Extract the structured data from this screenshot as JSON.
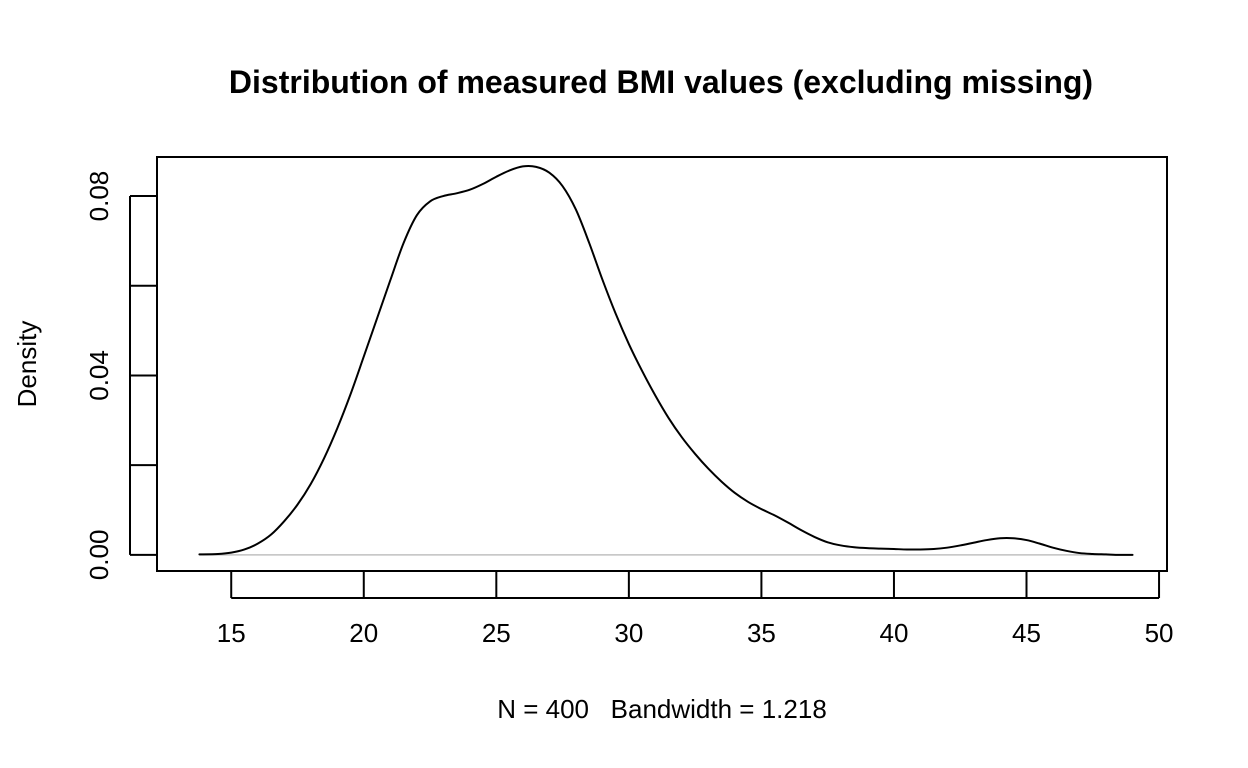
{
  "chart_data": {
    "type": "line",
    "title": "Distribution of measured BMI values (excluding missing)",
    "xlabel": "N = 400   Bandwidth = 1.218",
    "ylabel": "Density",
    "xlim": [
      12.2,
      50.3
    ],
    "ylim": [
      -0.0036,
      0.0887
    ],
    "x_ticks": [
      15,
      20,
      25,
      30,
      35,
      40,
      45,
      50
    ],
    "x_tick_labels": [
      "15",
      "20",
      "25",
      "30",
      "35",
      "40",
      "45",
      "50"
    ],
    "y_ticks": [
      0.0,
      0.02,
      0.04,
      0.06,
      0.08
    ],
    "y_tick_labels": [
      "0.00",
      "",
      "0.04",
      "",
      "0.08"
    ],
    "zero_line": true,
    "zero_line_color": "#c0c0c0",
    "line_color": "#000000",
    "grid": false,
    "series": [
      {
        "x": [
          13.8,
          14.5,
          15.0,
          15.5,
          16.0,
          16.5,
          17.0,
          17.5,
          18.0,
          18.5,
          19.0,
          19.5,
          20.0,
          20.5,
          21.0,
          21.5,
          22.0,
          22.5,
          23.0,
          23.5,
          24.0,
          24.5,
          25.0,
          25.5,
          26.0,
          26.5,
          27.0,
          27.5,
          28.0,
          28.5,
          29.0,
          29.5,
          30.0,
          30.5,
          31.0,
          31.5,
          32.0,
          32.5,
          33.0,
          33.5,
          34.0,
          34.5,
          35.0,
          35.5,
          36.0,
          36.5,
          37.0,
          37.5,
          38.0,
          38.5,
          39.0,
          39.5,
          40.0,
          40.5,
          41.0,
          41.5,
          42.0,
          42.5,
          43.0,
          43.5,
          44.0,
          44.5,
          45.0,
          45.5,
          46.0,
          46.5,
          47.0,
          47.5,
          48.0,
          48.5,
          49.0
        ],
        "y": [
          0.0001,
          0.0002,
          0.0005,
          0.0012,
          0.0025,
          0.0045,
          0.0075,
          0.0112,
          0.0158,
          0.0215,
          0.0282,
          0.0358,
          0.0442,
          0.0527,
          0.0612,
          0.0695,
          0.0757,
          0.0788,
          0.08,
          0.0806,
          0.0814,
          0.0827,
          0.0843,
          0.0857,
          0.0866,
          0.0865,
          0.0852,
          0.0822,
          0.077,
          0.0696,
          0.0614,
          0.0538,
          0.047,
          0.041,
          0.0355,
          0.0305,
          0.0262,
          0.0225,
          0.0192,
          0.0163,
          0.0138,
          0.0118,
          0.0102,
          0.0088,
          0.0072,
          0.0055,
          0.004,
          0.0028,
          0.0021,
          0.0017,
          0.0015,
          0.0014,
          0.0013,
          0.0012,
          0.0012,
          0.0013,
          0.0016,
          0.0021,
          0.0027,
          0.0033,
          0.0037,
          0.0037,
          0.0033,
          0.0025,
          0.0016,
          0.0009,
          0.0004,
          0.0002,
          0.0001,
          0.0,
          0.0
        ]
      }
    ]
  }
}
